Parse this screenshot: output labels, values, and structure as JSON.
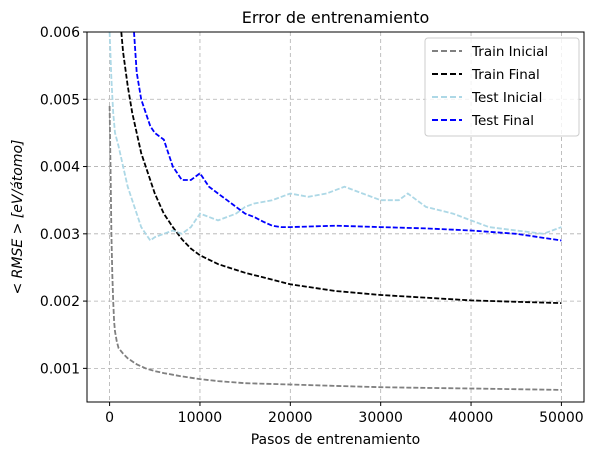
{
  "chart_data": {
    "type": "line",
    "title": "Error de entrenamiento",
    "xlabel": "Pasos de entrenamiento",
    "ylabel": "< RMSE > [eV/átomo]",
    "xlim": [
      -2500,
      52500
    ],
    "ylim": [
      0.0005,
      0.006
    ],
    "xticks": [
      0,
      10000,
      20000,
      30000,
      40000,
      50000
    ],
    "xtick_labels": [
      "0",
      "10000",
      "20000",
      "30000",
      "40000",
      "50000"
    ],
    "yticks": [
      0.001,
      0.002,
      0.003,
      0.004,
      0.005,
      0.006
    ],
    "ytick_labels": [
      "0.001",
      "0.002",
      "0.003",
      "0.004",
      "0.005",
      "0.006"
    ],
    "grid": true,
    "legend_position": "top-right",
    "series": [
      {
        "name": "Train Inicial",
        "color": "#808080",
        "x": [
          0,
          100,
          200,
          300,
          400,
          500,
          600,
          800,
          1000,
          1500,
          2000,
          3000,
          4000,
          5000,
          6000,
          8000,
          10000,
          12000,
          15000,
          20000,
          25000,
          30000,
          35000,
          40000,
          45000,
          50000
        ],
        "y": [
          0.0049,
          0.004,
          0.003,
          0.0024,
          0.002,
          0.0017,
          0.00155,
          0.0014,
          0.0013,
          0.00122,
          0.00115,
          0.00106,
          0.001,
          0.00096,
          0.00093,
          0.00088,
          0.00084,
          0.00081,
          0.00078,
          0.00076,
          0.00074,
          0.00072,
          0.00071,
          0.0007,
          0.00069,
          0.00068
        ]
      },
      {
        "name": "Train Final",
        "color": "#000000",
        "x": [
          1300,
          1500,
          2000,
          2500,
          3000,
          3500,
          4000,
          5000,
          6000,
          7000,
          8000,
          9000,
          10000,
          12000,
          15000,
          18000,
          20000,
          25000,
          30000,
          35000,
          40000,
          45000,
          50000
        ],
        "y": [
          0.006,
          0.0057,
          0.0052,
          0.0048,
          0.0045,
          0.0042,
          0.004,
          0.0036,
          0.0033,
          0.0031,
          0.00292,
          0.00278,
          0.00268,
          0.00255,
          0.00242,
          0.00232,
          0.00225,
          0.00215,
          0.00209,
          0.00205,
          0.00201,
          0.00199,
          0.00197
        ]
      },
      {
        "name": "Test Inicial",
        "color": "#add8e6",
        "x": [
          0,
          200,
          400,
          600,
          800,
          1000,
          1500,
          2000,
          2500,
          3000,
          3500,
          4000,
          4500,
          5000,
          6000,
          7000,
          8000,
          9000,
          10000,
          11000,
          12000,
          13000,
          14000,
          15000,
          16000,
          18000,
          20000,
          22000,
          24000,
          26000,
          28000,
          30000,
          32000,
          33000,
          35000,
          38000,
          40000,
          42000,
          45000,
          48000,
          50000
        ],
        "y": [
          0.006,
          0.0053,
          0.0048,
          0.0045,
          0.0044,
          0.0043,
          0.004,
          0.0037,
          0.0035,
          0.0033,
          0.0031,
          0.003,
          0.0029,
          0.00295,
          0.003,
          0.00305,
          0.003,
          0.0031,
          0.0033,
          0.00325,
          0.0032,
          0.00325,
          0.0033,
          0.0034,
          0.00345,
          0.0035,
          0.0036,
          0.00355,
          0.0036,
          0.0037,
          0.0036,
          0.0035,
          0.0035,
          0.0036,
          0.0034,
          0.0033,
          0.0032,
          0.0031,
          0.00305,
          0.003,
          0.0031
        ]
      },
      {
        "name": "Test Final",
        "color": "#0000ff",
        "x": [
          2700,
          3000,
          3500,
          4000,
          4500,
          5000,
          5500,
          6000,
          6500,
          7000,
          8000,
          9000,
          10000,
          11000,
          12000,
          13000,
          14000,
          15000,
          16000,
          17000,
          18000,
          19000,
          20000,
          25000,
          30000,
          35000,
          40000,
          45000,
          50000
        ],
        "y": [
          0.006,
          0.0054,
          0.005,
          0.0048,
          0.0046,
          0.0045,
          0.00445,
          0.0044,
          0.0042,
          0.004,
          0.0038,
          0.0038,
          0.0039,
          0.0037,
          0.0036,
          0.0035,
          0.0034,
          0.0033,
          0.00325,
          0.00318,
          0.00312,
          0.0031,
          0.0031,
          0.00312,
          0.0031,
          0.00308,
          0.00305,
          0.003,
          0.0029
        ]
      }
    ]
  }
}
